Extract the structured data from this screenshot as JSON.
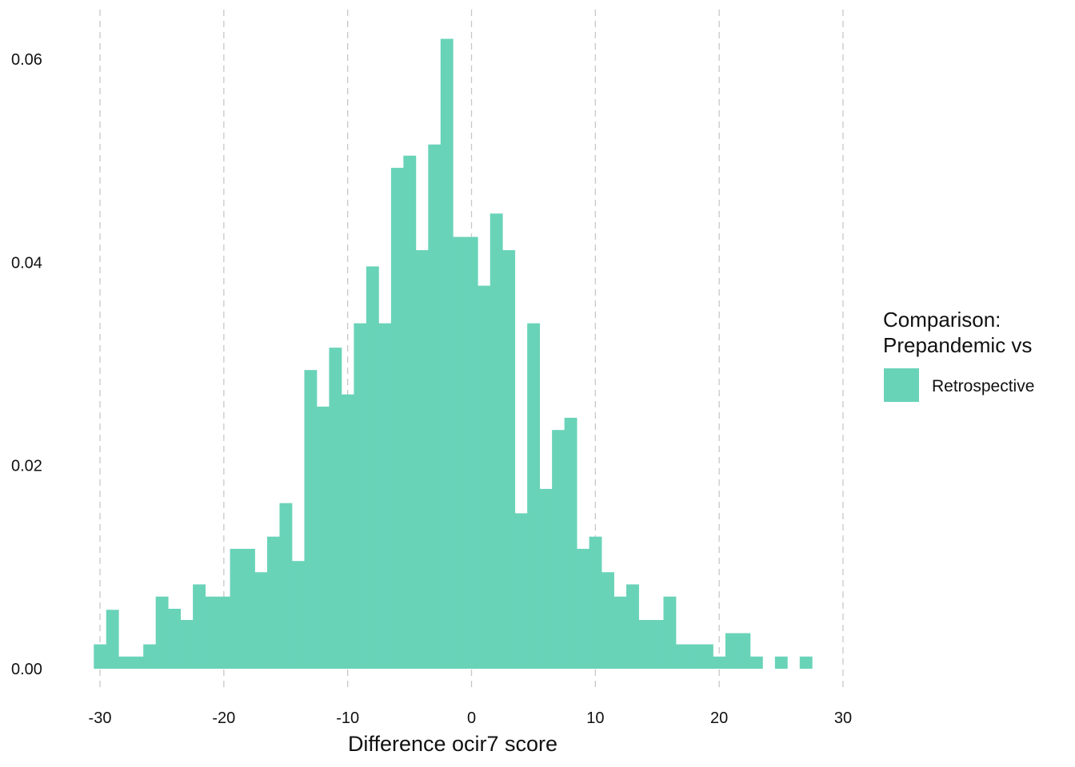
{
  "chart_data": {
    "type": "bar",
    "title": "",
    "xlabel": "Difference ocir7 score",
    "ylabel": "",
    "bin_width": 1,
    "xlim": [
      -30.5,
      30
    ],
    "ylim": [
      0,
      0.0615
    ],
    "x_ticks": [
      -30,
      -20,
      -10,
      0,
      10,
      20,
      30
    ],
    "x_tick_labels": [
      "-30",
      "-20",
      "-10",
      "0",
      "10",
      "20",
      "30"
    ],
    "y_ticks": [
      0,
      0.02,
      0.04,
      0.06
    ],
    "y_tick_labels": [
      "0.00",
      "0.02",
      "0.04",
      "0.06"
    ],
    "grid": "vertical dashed major lines",
    "legend": {
      "title_lines": [
        "Comparison:",
        "Prepandemic vs"
      ],
      "placement": "right",
      "entries": [
        "Retrospective"
      ]
    },
    "series": [
      {
        "name": "Retrospective",
        "color": "#69D3B8",
        "x_start": [
          -30.5,
          -29.5,
          -28.5,
          -27.5,
          -26.5,
          -25.5,
          -24.5,
          -23.5,
          -22.5,
          -21.5,
          -20.5,
          -19.5,
          -18.5,
          -17.5,
          -16.5,
          -15.5,
          -14.5,
          -13.5,
          -12.5,
          -11.5,
          -10.5,
          -9.5,
          -8.5,
          -7.5,
          -6.5,
          -5.5,
          -4.5,
          -3.5,
          -2.5,
          -1.5,
          -0.5,
          0.5,
          1.5,
          2.5,
          3.5,
          4.5,
          5.5,
          6.5,
          7.5,
          8.5,
          9.5,
          10.5,
          11.5,
          12.5,
          13.5,
          14.5,
          15.5,
          16.5,
          17.5,
          18.5,
          19.5,
          20.5,
          21.5,
          22.5,
          23.5,
          24.5,
          25.5,
          26.5
        ],
        "values": [
          0.0024,
          0.0058,
          0.0012,
          0.0012,
          0.0024,
          0.0071,
          0.0059,
          0.0048,
          0.0083,
          0.0071,
          0.0071,
          0.0118,
          0.0118,
          0.0095,
          0.013,
          0.0163,
          0.0106,
          0.0294,
          0.0258,
          0.0316,
          0.027,
          0.034,
          0.0396,
          0.034,
          0.0493,
          0.0505,
          0.0412,
          0.0516,
          0.062,
          0.0425,
          0.0425,
          0.0377,
          0.0448,
          0.0412,
          0.0153,
          0.034,
          0.0177,
          0.0235,
          0.0247,
          0.0118,
          0.013,
          0.0095,
          0.0071,
          0.0083,
          0.0048,
          0.0048,
          0.0071,
          0.0024,
          0.0024,
          0.0024,
          0.0012,
          0.0035,
          0.0035,
          0.0012,
          0.0,
          0.0012,
          0.0,
          0.0012
        ]
      }
    ]
  }
}
